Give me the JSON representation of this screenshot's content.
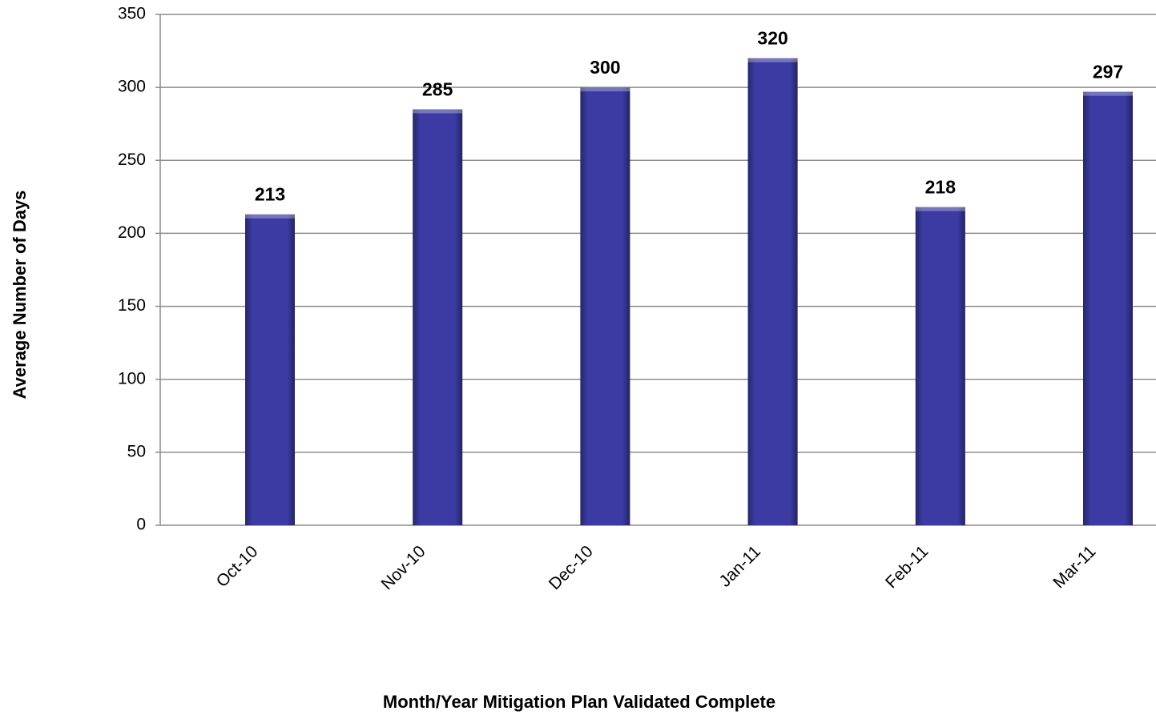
{
  "chart_data": {
    "type": "bar",
    "x_label": "Month/Year Mitigation Plan Validated Complete",
    "y_label": "Average Number of Days",
    "categories": [
      "Oct-10",
      "Nov-10",
      "Dec-10",
      "Jan-11",
      "Feb-11",
      "Mar-11"
    ],
    "values": [
      213,
      285,
      300,
      320,
      218,
      297
    ],
    "color": "#3b3ba3",
    "ylim": [
      0,
      350
    ],
    "yticks": [
      0,
      50,
      100,
      150,
      200,
      250,
      300,
      350
    ],
    "grid": true
  }
}
